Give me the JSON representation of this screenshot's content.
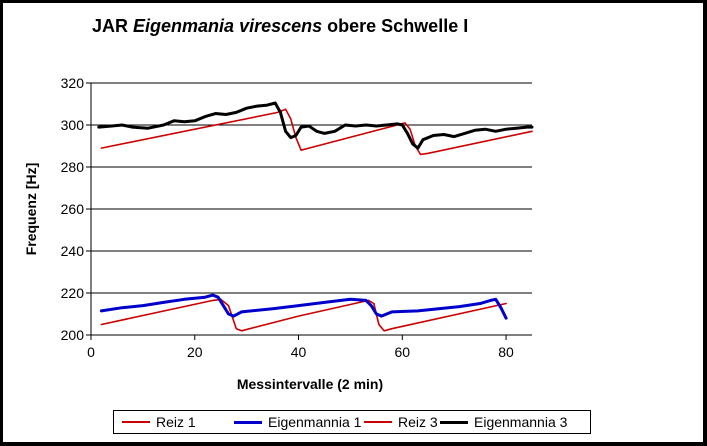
{
  "chart_data": {
    "type": "line",
    "title_prefix": "JAR",
    "title_species": "Eigenmania virescens",
    "title_suffix": "obere Schwelle I",
    "xlabel": "Messintervalle (2 min)",
    "ylabel": "Frequenz [Hz]",
    "xlim": [
      0,
      85
    ],
    "ylim": [
      200,
      320
    ],
    "xticks": [
      0,
      20,
      40,
      60,
      80
    ],
    "yticks": [
      200,
      220,
      240,
      260,
      280,
      300,
      320
    ],
    "grid": "horizontal",
    "legend_position": "bottom",
    "series": [
      {
        "name": "Reiz 1",
        "color": "#cc0000",
        "points": [
          [
            2,
            205
          ],
          [
            23.5,
            216.5
          ],
          [
            25,
            217
          ],
          [
            26.5,
            214
          ],
          [
            28,
            203
          ],
          [
            29,
            202
          ],
          [
            40,
            209
          ],
          [
            53.5,
            216.5
          ],
          [
            54.5,
            215
          ],
          [
            55.5,
            205
          ],
          [
            56.5,
            202
          ],
          [
            58,
            203
          ],
          [
            80,
            215
          ]
        ]
      },
      {
        "name": "Eigenmannia 1",
        "color": "#0000cc",
        "points": [
          [
            2,
            211.5
          ],
          [
            6,
            213
          ],
          [
            10,
            214
          ],
          [
            14,
            215.5
          ],
          [
            18,
            217
          ],
          [
            22,
            218
          ],
          [
            23.5,
            219
          ],
          [
            24.5,
            218
          ],
          [
            25.5,
            214
          ],
          [
            26.5,
            210
          ],
          [
            27.5,
            209
          ],
          [
            29,
            211
          ],
          [
            35,
            212.5
          ],
          [
            40,
            214
          ],
          [
            45,
            215.5
          ],
          [
            50,
            217
          ],
          [
            53,
            216.5
          ],
          [
            54,
            214
          ],
          [
            55,
            210
          ],
          [
            56,
            209
          ],
          [
            58,
            211
          ],
          [
            63,
            211.5
          ],
          [
            67,
            212.5
          ],
          [
            71,
            213.5
          ],
          [
            75,
            215
          ],
          [
            77,
            216.5
          ],
          [
            78,
            217
          ],
          [
            79,
            213
          ],
          [
            80,
            208
          ]
        ]
      },
      {
        "name": "Reiz 3",
        "color": "#cc0000",
        "points": [
          [
            2,
            289
          ],
          [
            36,
            306
          ],
          [
            37.5,
            307.5
          ],
          [
            38.5,
            303
          ],
          [
            39.5,
            294
          ],
          [
            40.5,
            288
          ],
          [
            42,
            289
          ],
          [
            59,
            300
          ],
          [
            60.5,
            301
          ],
          [
            61.5,
            298
          ],
          [
            62.5,
            290
          ],
          [
            63.5,
            286
          ],
          [
            65,
            286.5
          ],
          [
            85,
            297
          ]
        ]
      },
      {
        "name": "Eigenmannia 3",
        "color": "#000000",
        "points": [
          [
            1.5,
            299
          ],
          [
            4,
            299.5
          ],
          [
            6,
            300
          ],
          [
            8,
            299
          ],
          [
            11,
            298.5
          ],
          [
            14,
            300
          ],
          [
            16,
            302
          ],
          [
            18,
            301.5
          ],
          [
            20,
            302
          ],
          [
            22,
            304
          ],
          [
            24,
            305.5
          ],
          [
            26,
            305
          ],
          [
            28,
            306
          ],
          [
            30,
            308
          ],
          [
            32,
            309
          ],
          [
            34,
            309.5
          ],
          [
            35.5,
            310.5
          ],
          [
            36.5,
            306
          ],
          [
            37.5,
            297
          ],
          [
            38.5,
            294
          ],
          [
            39.5,
            295
          ],
          [
            40.5,
            299
          ],
          [
            42,
            299.5
          ],
          [
            43.5,
            297
          ],
          [
            45,
            296
          ],
          [
            47,
            297
          ],
          [
            49,
            300
          ],
          [
            51,
            299.5
          ],
          [
            53,
            300
          ],
          [
            55,
            299.5
          ],
          [
            57,
            300
          ],
          [
            59,
            300.5
          ],
          [
            60,
            300
          ],
          [
            61,
            296
          ],
          [
            62,
            291
          ],
          [
            63,
            289
          ],
          [
            64,
            293
          ],
          [
            66,
            295
          ],
          [
            68,
            295.5
          ],
          [
            70,
            294.5
          ],
          [
            72,
            296
          ],
          [
            74,
            297.5
          ],
          [
            76,
            298
          ],
          [
            78,
            297
          ],
          [
            80,
            298
          ],
          [
            82,
            298.5
          ],
          [
            84,
            299
          ],
          [
            85,
            299
          ]
        ]
      }
    ]
  },
  "legend": {
    "items": [
      "Reiz 1",
      "Eigenmannia 1",
      "Reiz 3",
      "Eigenmannia 3"
    ]
  }
}
